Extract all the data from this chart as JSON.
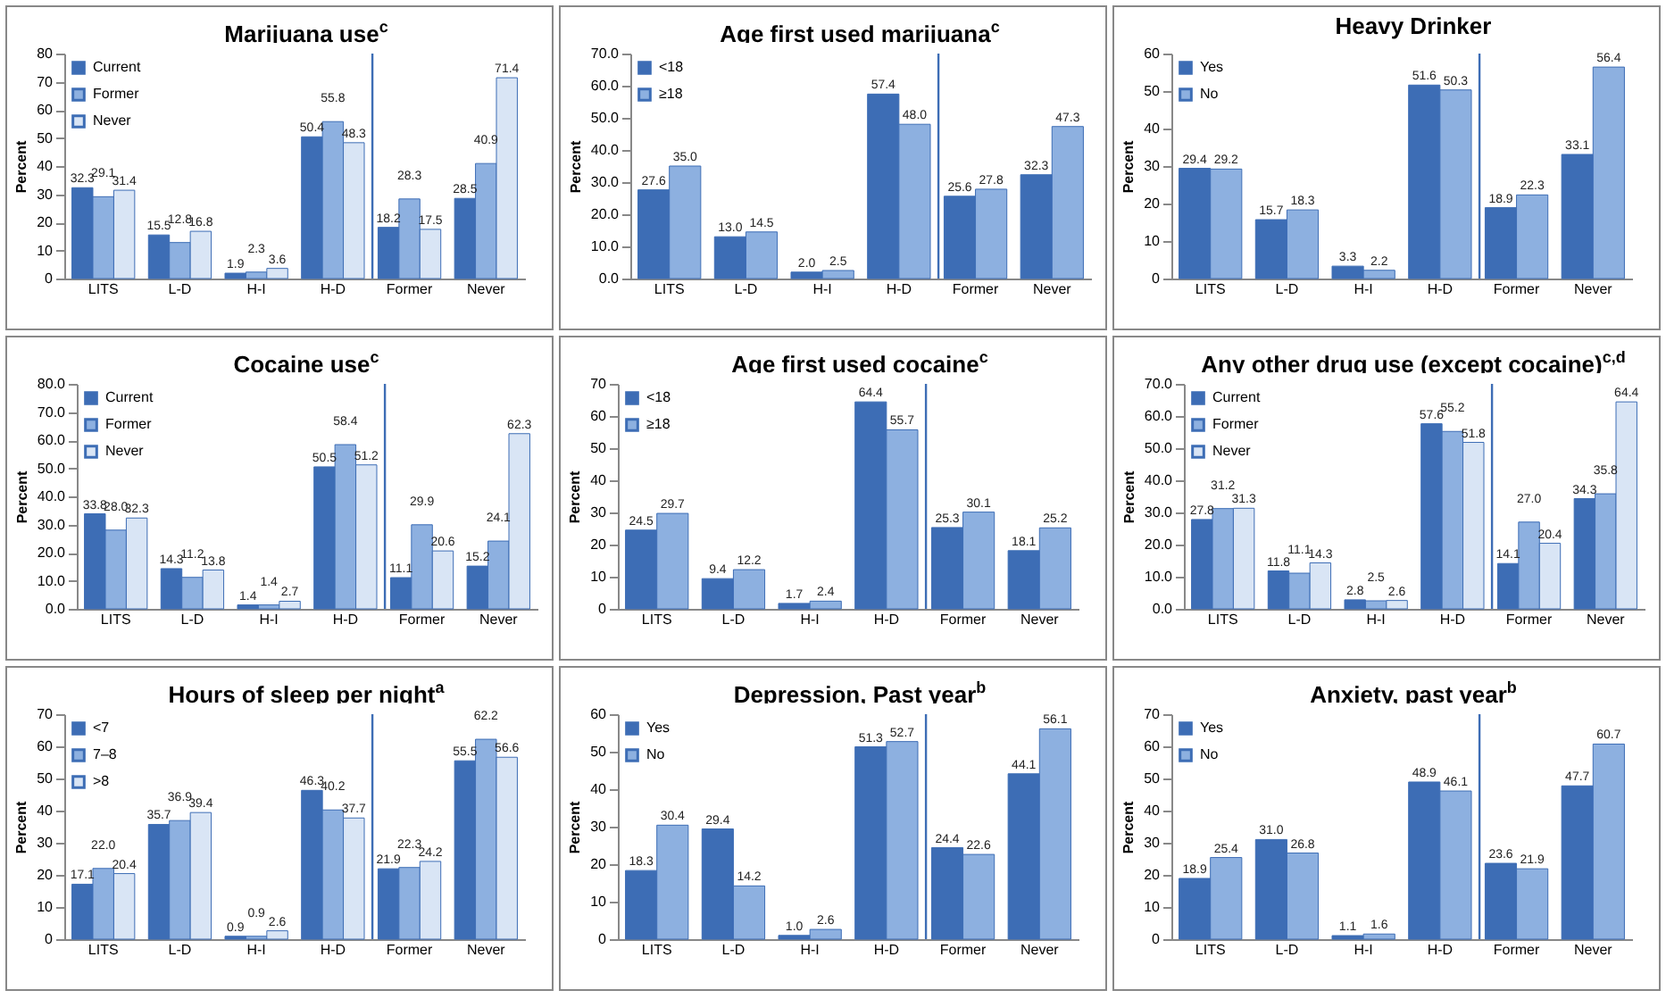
{
  "chart_data": [
    {
      "type": "bar",
      "title": "Marijuana use$^{c}$",
      "ylabel": "Percent",
      "categories": [
        "LITS",
        "L-D",
        "H-I",
        "H-D",
        "Former",
        "Never"
      ],
      "series": [
        {
          "name": "Current",
          "color": "#3d6db5",
          "values": [
            32.3,
            15.5,
            1.9,
            50.4,
            18.2,
            28.5
          ],
          "value_labels": [
            "32.3",
            "15.5",
            "1.9",
            "50.4",
            "18.2",
            "28.5"
          ]
        },
        {
          "name": "Former",
          "color": "#8db0e0",
          "values": [
            29.1,
            12.8,
            2.3,
            55.8,
            28.3,
            40.9
          ],
          "value_labels": [
            "29.1",
            "12.8",
            "2.3",
            "55.8",
            "28.3",
            "40.9"
          ]
        },
        {
          "name": "Never",
          "color": "#d9e5f5",
          "values": [
            31.4,
            16.8,
            3.6,
            48.3,
            17.5,
            71.4
          ],
          "value_labels": [
            "31.4",
            "16.8",
            "3.6",
            "48.3",
            "17.5",
            "71.4"
          ]
        }
      ],
      "ylim": [
        0,
        80
      ],
      "yticks": [
        0,
        10,
        20,
        30,
        40,
        50,
        60,
        70,
        80
      ],
      "legend": "top left",
      "grid": false,
      "ref_lines": [
        {
          "axis": "x",
          "value": "Former",
          "color": "#3d6db5"
        }
      ]
    },
    {
      "type": "bar",
      "title": "Age first used marijuana$^{c}$",
      "ylabel": "Percent",
      "categories": [
        "LITS",
        "L-D",
        "H-I",
        "H-D",
        "Former",
        "Never"
      ],
      "series": [
        {
          "name": "<18",
          "color": "#3d6db5",
          "values": [
            27.6,
            13.0,
            2.0,
            57.4,
            25.6,
            32.3
          ],
          "value_labels": [
            "27.6",
            "13.0",
            "2.0",
            "57.4",
            "25.6",
            "32.3"
          ]
        },
        {
          "name": "≥18",
          "color": "#8db0e0",
          "values": [
            35.0,
            14.5,
            2.5,
            48.0,
            27.8,
            47.3
          ],
          "value_labels": [
            "35.0",
            "14.5",
            "2.5",
            "48.0",
            "27.8",
            "47.3"
          ]
        }
      ],
      "ylim": [
        0,
        70
      ],
      "yticks": [
        {
          "value": 0,
          "label": "0.0"
        },
        {
          "value": 10,
          "label": "10.0"
        },
        {
          "value": 20,
          "label": "20.0"
        },
        {
          "value": 30,
          "label": "30.0"
        },
        {
          "value": 40,
          "label": "40.0"
        },
        {
          "value": 50,
          "label": "50.0"
        },
        {
          "value": 60,
          "label": "60.0"
        },
        {
          "value": 70,
          "label": "70.0"
        }
      ],
      "legend": "top left",
      "grid": false,
      "ref_lines": [
        {
          "axis": "x",
          "value": "Former",
          "color": "#3d6db5"
        }
      ]
    },
    {
      "type": "bar",
      "title": "Heavy Drinker",
      "ylabel": "Percent",
      "categories": [
        "LITS",
        "L-D",
        "H-I",
        "H-D",
        "Former",
        "Never"
      ],
      "series": [
        {
          "name": "Yes",
          "color": "#3d6db5",
          "values": [
            29.4,
            15.7,
            3.3,
            51.6,
            18.9,
            33.1
          ],
          "value_labels": [
            "29.4",
            "15.7",
            "3.3",
            "51.6",
            "18.9",
            "33.1"
          ]
        },
        {
          "name": "No",
          "color": "#8db0e0",
          "values": [
            29.2,
            18.3,
            2.2,
            50.3,
            22.3,
            56.4
          ],
          "value_labels": [
            "29.2",
            "18.3",
            "2.2",
            "50.3",
            "22.3",
            "56.4"
          ]
        }
      ],
      "ylim": [
        0,
        60
      ],
      "yticks": [
        0,
        10,
        20,
        30,
        40,
        50,
        60
      ],
      "legend": "top left",
      "grid": false,
      "ref_lines": [
        {
          "axis": "x",
          "value": "Former",
          "color": "#3d6db5"
        }
      ]
    },
    {
      "type": "bar",
      "title": "Cocaine use$^{c}$",
      "ylabel": "Percent",
      "categories": [
        "LITS",
        "L-D",
        "H-I",
        "H-D",
        "Former",
        "Never"
      ],
      "series": [
        {
          "name": "Current",
          "color": "#3d6db5",
          "values": [
            33.8,
            14.3,
            1.4,
            50.5,
            11.1,
            15.2
          ],
          "value_labels": [
            "33.8",
            "14.3",
            "1.4",
            "50.5",
            "11.1",
            "15.2"
          ]
        },
        {
          "name": "Former",
          "color": "#8db0e0",
          "values": [
            28.0,
            11.2,
            1.4,
            58.4,
            29.9,
            24.1
          ],
          "value_labels": [
            "28.0",
            "11.2",
            "1.4",
            "58.4",
            "29.9",
            "24.1"
          ]
        },
        {
          "name": "Never",
          "color": "#d9e5f5",
          "values": [
            32.3,
            13.8,
            2.7,
            51.2,
            20.6,
            62.3
          ],
          "value_labels": [
            "32.3",
            "13.8",
            "2.7",
            "51.2",
            "20.6",
            "62.3"
          ]
        }
      ],
      "ylim": [
        0,
        80
      ],
      "yticks": [
        {
          "value": 0,
          "label": "0.0"
        },
        {
          "value": 10,
          "label": "10.0"
        },
        {
          "value": 20,
          "label": "20.0"
        },
        {
          "value": 30,
          "label": "30.0"
        },
        {
          "value": 40,
          "label": "40.0"
        },
        {
          "value": 50,
          "label": "50.0"
        },
        {
          "value": 60,
          "label": "60.0"
        },
        {
          "value": 70,
          "label": "70.0"
        },
        {
          "value": 80,
          "label": "80.0"
        }
      ],
      "legend": "top left",
      "grid": false,
      "ref_lines": [
        {
          "axis": "x",
          "value": "Former",
          "color": "#3d6db5"
        }
      ]
    },
    {
      "type": "bar",
      "title": "Age first used cocaine$^{c}$",
      "ylabel": "Percent",
      "categories": [
        "LITS",
        "L-D",
        "H-I",
        "H-D",
        "Former",
        "Never"
      ],
      "series": [
        {
          "name": "<18",
          "color": "#3d6db5",
          "values": [
            24.5,
            9.4,
            1.7,
            64.4,
            25.3,
            18.1
          ],
          "value_labels": [
            "24.5",
            "9.4",
            "1.7",
            "64.4",
            "25.3",
            "18.1"
          ]
        },
        {
          "name": "≥18",
          "color": "#8db0e0",
          "values": [
            29.7,
            12.2,
            2.4,
            55.7,
            30.1,
            25.2
          ],
          "value_labels": [
            "29.7",
            "12.2",
            "2.4",
            "55.7",
            "30.1",
            "25.2"
          ]
        }
      ],
      "ylim": [
        0,
        70
      ],
      "yticks": [
        0,
        10,
        20,
        30,
        40,
        50,
        60,
        70
      ],
      "legend": "top left",
      "grid": false,
      "ref_lines": [
        {
          "axis": "x",
          "value": "Former",
          "color": "#3d6db5"
        }
      ]
    },
    {
      "type": "bar",
      "title": "Any other drug use (except cocaine)$^{c,d}$",
      "ylabel": "Percent",
      "categories": [
        "LITS",
        "L-D",
        "H-I",
        "H-D",
        "Former",
        "Never"
      ],
      "series": [
        {
          "name": "Current",
          "color": "#3d6db5",
          "values": [
            27.8,
            11.8,
            2.8,
            57.6,
            14.1,
            34.3
          ],
          "value_labels": [
            "27.8",
            "11.8",
            "2.8",
            "57.6",
            "14.1",
            "34.3"
          ]
        },
        {
          "name": "Former",
          "color": "#8db0e0",
          "values": [
            31.2,
            11.1,
            2.5,
            55.2,
            27.0,
            35.8
          ],
          "value_labels": [
            "31.2",
            "11.1",
            "2.5",
            "55.2",
            "27.0",
            "35.8"
          ]
        },
        {
          "name": "Never",
          "color": "#d9e5f5",
          "values": [
            31.3,
            14.3,
            2.6,
            51.8,
            20.4,
            64.4
          ],
          "value_labels": [
            "31.3",
            "14.3",
            "2.6",
            "51.8",
            "20.4",
            "64.4"
          ]
        }
      ],
      "ylim": [
        0,
        70
      ],
      "yticks": [
        {
          "value": 0,
          "label": "0.0"
        },
        {
          "value": 10,
          "label": "10.0"
        },
        {
          "value": 20,
          "label": "20.0"
        },
        {
          "value": 30,
          "label": "30.0"
        },
        {
          "value": 40,
          "label": "40.0"
        },
        {
          "value": 50,
          "label": "50.0"
        },
        {
          "value": 60,
          "label": "60.0"
        },
        {
          "value": 70,
          "label": "70.0"
        }
      ],
      "legend": "top left",
      "grid": false,
      "ref_lines": [
        {
          "axis": "x",
          "value": "Former",
          "color": "#3d6db5"
        }
      ]
    },
    {
      "type": "bar",
      "title": "Hours of sleep per night$^{a}$",
      "ylabel": "Percent",
      "categories": [
        "LITS",
        "L-D",
        "H-I",
        "H-D",
        "Former",
        "Never"
      ],
      "series": [
        {
          "name": "<7",
          "color": "#3d6db5",
          "values": [
            17.1,
            35.7,
            0.9,
            46.3,
            21.9,
            55.5
          ],
          "value_labels": [
            "17.1",
            "35.7",
            "0.9",
            "46.3",
            "21.9",
            "55.5"
          ]
        },
        {
          "name": "7–8",
          "color": "#8db0e0",
          "values": [
            22.0,
            36.9,
            0.9,
            40.2,
            22.3,
            62.2
          ],
          "value_labels": [
            "22.0",
            "36.9",
            "0.9",
            "40.2",
            "22.3",
            "62.2"
          ]
        },
        {
          "name": ">8",
          "color": "#d9e5f5",
          "values": [
            20.4,
            39.4,
            2.6,
            37.7,
            24.2,
            56.6
          ],
          "value_labels": [
            "20.4",
            "39.4",
            "2.6",
            "37.7",
            "24.2",
            "56.6"
          ]
        }
      ],
      "ylim": [
        0,
        70
      ],
      "yticks": [
        0,
        10,
        20,
        30,
        40,
        50,
        60,
        70
      ],
      "legend": "top left",
      "grid": false,
      "ref_lines": [
        {
          "axis": "x",
          "value": "Former",
          "color": "#3d6db5"
        }
      ]
    },
    {
      "type": "bar",
      "title": "Depression, Past year$^{b}$",
      "ylabel": "Percent",
      "categories": [
        "LITS",
        "L-D",
        "H-I",
        "H-D",
        "Former",
        "Never"
      ],
      "series": [
        {
          "name": "Yes",
          "color": "#3d6db5",
          "values": [
            18.3,
            29.4,
            1.0,
            51.3,
            24.4,
            44.1
          ],
          "value_labels": [
            "18.3",
            "29.4",
            "1.0",
            "51.3",
            "24.4",
            "44.1"
          ]
        },
        {
          "name": "No",
          "color": "#8db0e0",
          "values": [
            30.4,
            14.2,
            2.6,
            52.7,
            22.6,
            56.1
          ],
          "value_labels": [
            "30.4",
            "14.2",
            "2.6",
            "52.7",
            "22.6",
            "56.1"
          ]
        }
      ],
      "ylim": [
        0,
        60
      ],
      "yticks": [
        0,
        10,
        20,
        30,
        40,
        50,
        60
      ],
      "legend": "top left",
      "grid": false,
      "ref_lines": [
        {
          "axis": "x",
          "value": "Former",
          "color": "#3d6db5"
        }
      ]
    },
    {
      "type": "bar",
      "title": "Anxiety, past year$^{b}$",
      "ylabel": "Percent",
      "categories": [
        "LITS",
        "L-D",
        "H-I",
        "H-D",
        "Former",
        "Never"
      ],
      "series": [
        {
          "name": "Yes",
          "color": "#3d6db5",
          "values": [
            18.9,
            31.0,
            1.1,
            48.9,
            23.6,
            47.7
          ],
          "value_labels": [
            "18.9",
            "31.0",
            "1.1",
            "48.9",
            "23.6",
            "47.7"
          ]
        },
        {
          "name": "No",
          "color": "#8db0e0",
          "values": [
            25.4,
            26.8,
            1.6,
            46.1,
            21.9,
            60.7
          ],
          "value_labels": [
            "25.4",
            "26.8",
            "1.6",
            "46.1",
            "21.9",
            "60.7"
          ]
        }
      ],
      "ylim": [
        0,
        70
      ],
      "yticks": [
        0,
        10,
        20,
        30,
        40,
        50,
        60,
        70
      ],
      "legend": "top left",
      "grid": false,
      "ref_lines": [
        {
          "axis": "x",
          "value": "Former",
          "color": "#3d6db5"
        }
      ]
    }
  ]
}
